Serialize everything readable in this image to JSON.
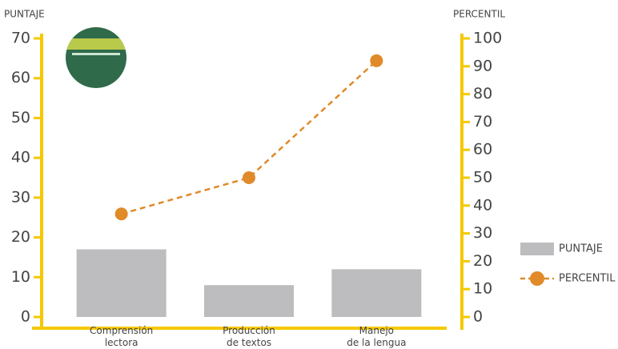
{
  "chart_data": {
    "type": "bar_line",
    "y_axis_title": "PUNTAJE",
    "y2_axis_title": "PERCENTIL",
    "categories": [
      "Comprensión\nlectora",
      "Producción\nde textos",
      "Manejo\nde la lengua"
    ],
    "series": [
      {
        "name": "PUNTAJE",
        "type": "bar",
        "color": "#bdbdc0",
        "values": [
          17,
          8,
          12
        ]
      },
      {
        "name": "PERCENTIL",
        "type": "line",
        "axis": "y2",
        "color": "#e08a2a",
        "values": [
          37,
          50,
          92
        ]
      }
    ],
    "ylim": [
      0,
      70
    ],
    "yticks": [
      0,
      10,
      20,
      30,
      40,
      50,
      60,
      70
    ],
    "y2lim": [
      0,
      100
    ],
    "y2ticks": [
      0,
      10,
      20,
      30,
      40,
      50,
      60,
      70,
      80,
      90,
      100
    ],
    "axis_color": "#f5c800",
    "legend": "right"
  }
}
